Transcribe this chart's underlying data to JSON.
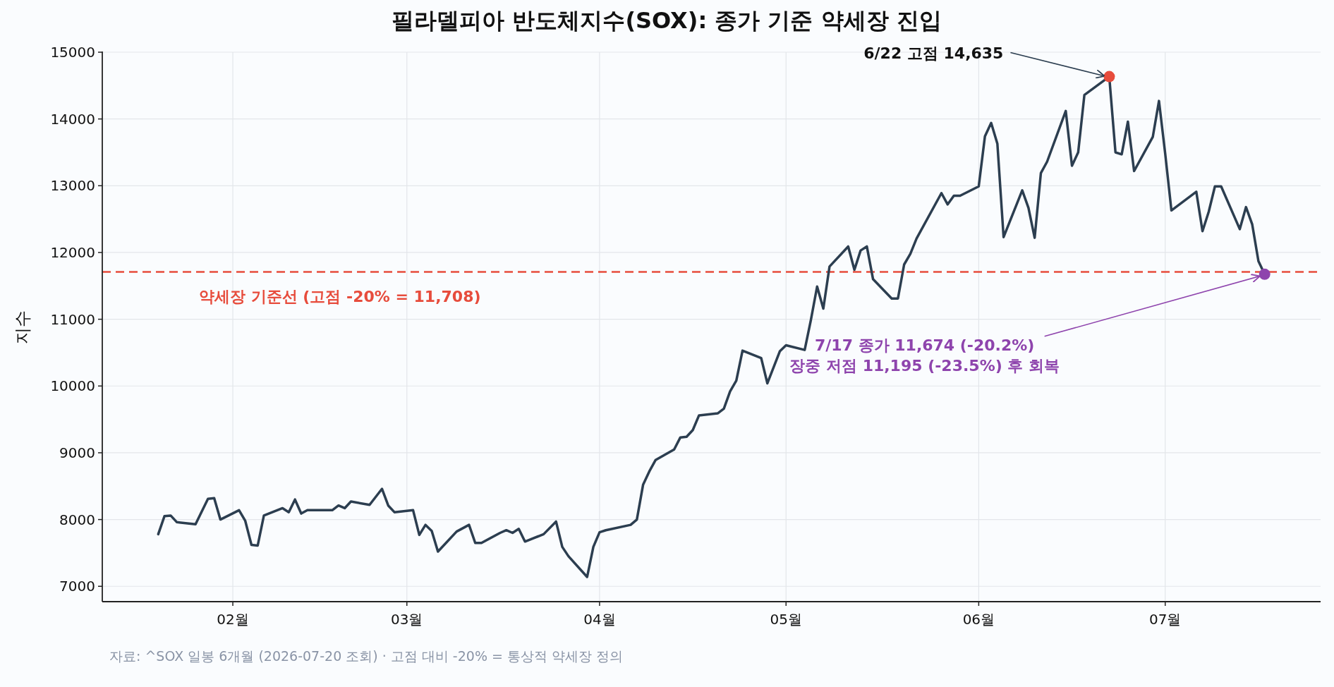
{
  "chart_data": {
    "type": "line",
    "title": "필라델피아 반도체지수(SOX): 종가 기준 약세장 진입",
    "ylabel": "지수",
    "xlim": [
      "2026-01-11",
      "2026-07-26"
    ],
    "ylim": [
      6770,
      15000
    ],
    "xticks": [
      {
        "value": "2026-02-01",
        "label": "02월"
      },
      {
        "value": "2026-03-01",
        "label": "03월"
      },
      {
        "value": "2026-04-01",
        "label": "04월"
      },
      {
        "value": "2026-05-01",
        "label": "05월"
      },
      {
        "value": "2026-06-01",
        "label": "06월"
      },
      {
        "value": "2026-07-01",
        "label": "07월"
      }
    ],
    "yticks": [
      7000,
      8000,
      9000,
      10000,
      11000,
      12000,
      13000,
      14000,
      15000
    ],
    "grid": true,
    "series": [
      {
        "color": "#2c3e50",
        "x": [
          "2026-01-20",
          "2026-01-21",
          "2026-01-22",
          "2026-01-23",
          "2026-01-26",
          "2026-01-28",
          "2026-01-29",
          "2026-01-30",
          "2026-02-02",
          "2026-02-03",
          "2026-02-04",
          "2026-02-05",
          "2026-02-06",
          "2026-02-09",
          "2026-02-10",
          "2026-02-11",
          "2026-02-12",
          "2026-02-13",
          "2026-02-17",
          "2026-02-18",
          "2026-02-19",
          "2026-02-20",
          "2026-02-23",
          "2026-02-25",
          "2026-02-26",
          "2026-02-27",
          "2026-03-02",
          "2026-03-03",
          "2026-03-04",
          "2026-03-05",
          "2026-03-06",
          "2026-03-09",
          "2026-03-11",
          "2026-03-12",
          "2026-03-13",
          "2026-03-16",
          "2026-03-17",
          "2026-03-18",
          "2026-03-19",
          "2026-03-20",
          "2026-03-23",
          "2026-03-25",
          "2026-03-26",
          "2026-03-27",
          "2026-03-30",
          "2026-03-31",
          "2026-04-01",
          "2026-04-02",
          "2026-04-06",
          "2026-04-07",
          "2026-04-08",
          "2026-04-09",
          "2026-04-10",
          "2026-04-13",
          "2026-04-14",
          "2026-04-15",
          "2026-04-16",
          "2026-04-17",
          "2026-04-20",
          "2026-04-21",
          "2026-04-22",
          "2026-04-23",
          "2026-04-24",
          "2026-04-27",
          "2026-04-28",
          "2026-04-30",
          "2026-05-01",
          "2026-05-04",
          "2026-05-05",
          "2026-05-06",
          "2026-05-07",
          "2026-05-08",
          "2026-05-11",
          "2026-05-12",
          "2026-05-13",
          "2026-05-14",
          "2026-05-15",
          "2026-05-18",
          "2026-05-19",
          "2026-05-20",
          "2026-05-21",
          "2026-05-22",
          "2026-05-26",
          "2026-05-27",
          "2026-05-28",
          "2026-05-29",
          "2026-06-01",
          "2026-06-02",
          "2026-06-03",
          "2026-06-04",
          "2026-06-05",
          "2026-06-08",
          "2026-06-09",
          "2026-06-10",
          "2026-06-11",
          "2026-06-12",
          "2026-06-15",
          "2026-06-16",
          "2026-06-17",
          "2026-06-18",
          "2026-06-22",
          "2026-06-23",
          "2026-06-24",
          "2026-06-25",
          "2026-06-26",
          "2026-06-29",
          "2026-06-30",
          "2026-07-01",
          "2026-07-02",
          "2026-07-06",
          "2026-07-07",
          "2026-07-08",
          "2026-07-09",
          "2026-07-10",
          "2026-07-13",
          "2026-07-14",
          "2026-07-15",
          "2026-07-16",
          "2026-07-17"
        ],
        "values": [
          7780,
          8050,
          8060,
          7960,
          7930,
          8310,
          8320,
          8000,
          8140,
          7980,
          7620,
          7610,
          8060,
          8170,
          8110,
          8300,
          8090,
          8140,
          8140,
          8210,
          8170,
          8270,
          8220,
          8460,
          8210,
          8110,
          8140,
          7770,
          7920,
          7830,
          7520,
          7820,
          7920,
          7650,
          7650,
          7800,
          7840,
          7800,
          7860,
          7670,
          7780,
          7970,
          7590,
          7450,
          7140,
          7590,
          7810,
          7840,
          7920,
          8000,
          8520,
          8720,
          8890,
          9050,
          9230,
          9240,
          9340,
          9560,
          9590,
          9660,
          9920,
          10080,
          10530,
          10420,
          10040,
          10520,
          10610,
          10540,
          10990,
          11490,
          11160,
          11790,
          12090,
          11740,
          12030,
          12090,
          11600,
          11310,
          11310,
          11820,
          11980,
          12210,
          12890,
          12720,
          12850,
          12850,
          12990,
          13740,
          13940,
          13630,
          12230,
          12930,
          12670,
          12220,
          13190,
          13360,
          14120,
          13300,
          13500,
          14360,
          14635,
          13500,
          13470,
          13960,
          13220,
          13730,
          14270,
          13480,
          12630,
          12910,
          12320,
          12610,
          12990,
          12990,
          12350,
          12680,
          12420,
          11870,
          11674
        ]
      },
      {
        "type": "scatter",
        "color": "#e74c3c",
        "x": [
          "2026-06-22"
        ],
        "values": [
          14635
        ]
      },
      {
        "type": "scatter",
        "color": "#8e44ad",
        "x": [
          "2026-07-17"
        ],
        "values": [
          11674
        ]
      }
    ],
    "ref_lines": [
      {
        "axis": "y",
        "value": 11708,
        "label": "약세장 기준선 (고점 -20% = 11,708)",
        "color": "#e74c3c",
        "line_style": "dashed"
      }
    ],
    "annotations": [
      {
        "text": "6/22 고점 14,635",
        "x": "2026-06-22",
        "y": 14635
      },
      {
        "text": "7/17 종가 11,674 (-20.2%)\n장중 저점 11,195 (-23.5%) 후 회복",
        "x": "2026-07-17",
        "y": 11674
      },
      "자료: ^SOX 일봉 6개월 (2026-07-20 조회) · 고점 대비 -20% = 통상적 약세장 정의"
    ]
  }
}
